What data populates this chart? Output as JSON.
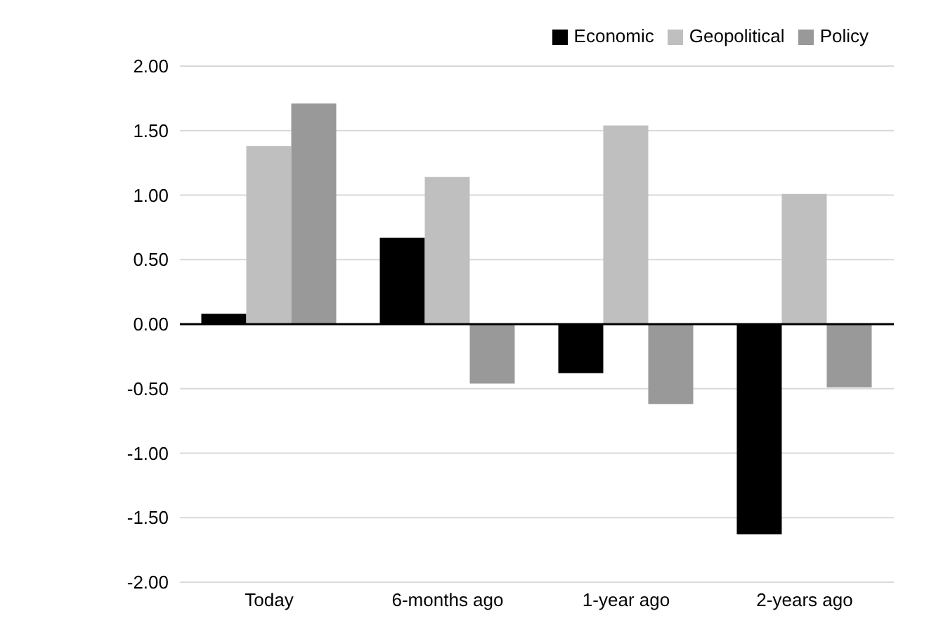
{
  "chart_data": {
    "type": "bar",
    "categories": [
      "Today",
      "6-months ago",
      "1-year ago",
      "2-years ago"
    ],
    "series": [
      {
        "name": "Economic",
        "color": "#000000",
        "values": [
          0.08,
          0.67,
          -0.38,
          -1.63
        ]
      },
      {
        "name": "Geopolitical",
        "color": "#bfbfbf",
        "values": [
          1.38,
          1.14,
          1.54,
          1.01
        ]
      },
      {
        "name": "Policy",
        "color": "#999999",
        "values": [
          1.71,
          -0.46,
          -0.62,
          -0.49
        ]
      }
    ],
    "ylim": [
      -2,
      2
    ],
    "yticks": [
      {
        "value": -2,
        "label": "-2.00"
      },
      {
        "value": -1.5,
        "label": "-1.50"
      },
      {
        "value": -1,
        "label": "-1.00"
      },
      {
        "value": -0.5,
        "label": "-0.50"
      },
      {
        "value": 0,
        "label": "0.00"
      },
      {
        "value": 0.5,
        "label": "0.50"
      },
      {
        "value": 1,
        "label": "1.00"
      },
      {
        "value": 1.5,
        "label": "1.50"
      },
      {
        "value": 2,
        "label": "2.00"
      }
    ],
    "grid": "y",
    "legend": "top right"
  }
}
